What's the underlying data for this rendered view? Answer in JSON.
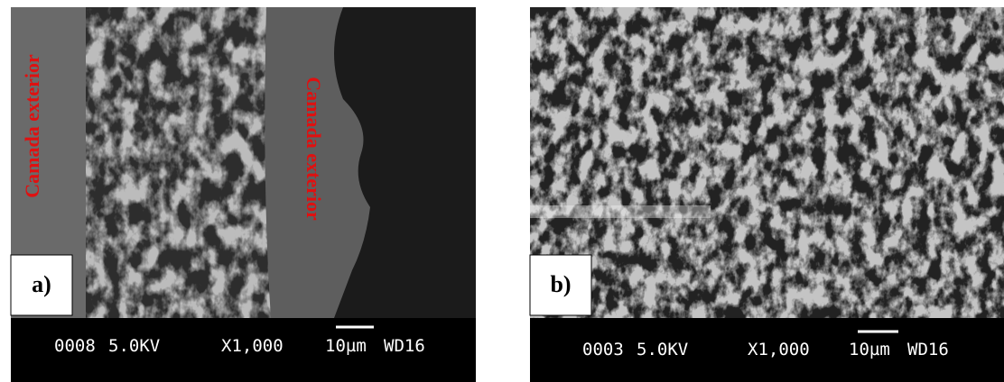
{
  "panels": [
    {
      "label": "a)",
      "annotations": [
        "Camada exterior",
        "Camada exterior"
      ],
      "footer": {
        "id": "0008",
        "voltage": "5.0KV",
        "magnification": "X1,000",
        "scale": "10µm",
        "wd": "WD16"
      }
    },
    {
      "label": "b)",
      "footer": {
        "id": "0003",
        "voltage": "5.0KV",
        "magnification": "X1,000",
        "scale": "10µm",
        "wd": "WD16"
      }
    }
  ]
}
